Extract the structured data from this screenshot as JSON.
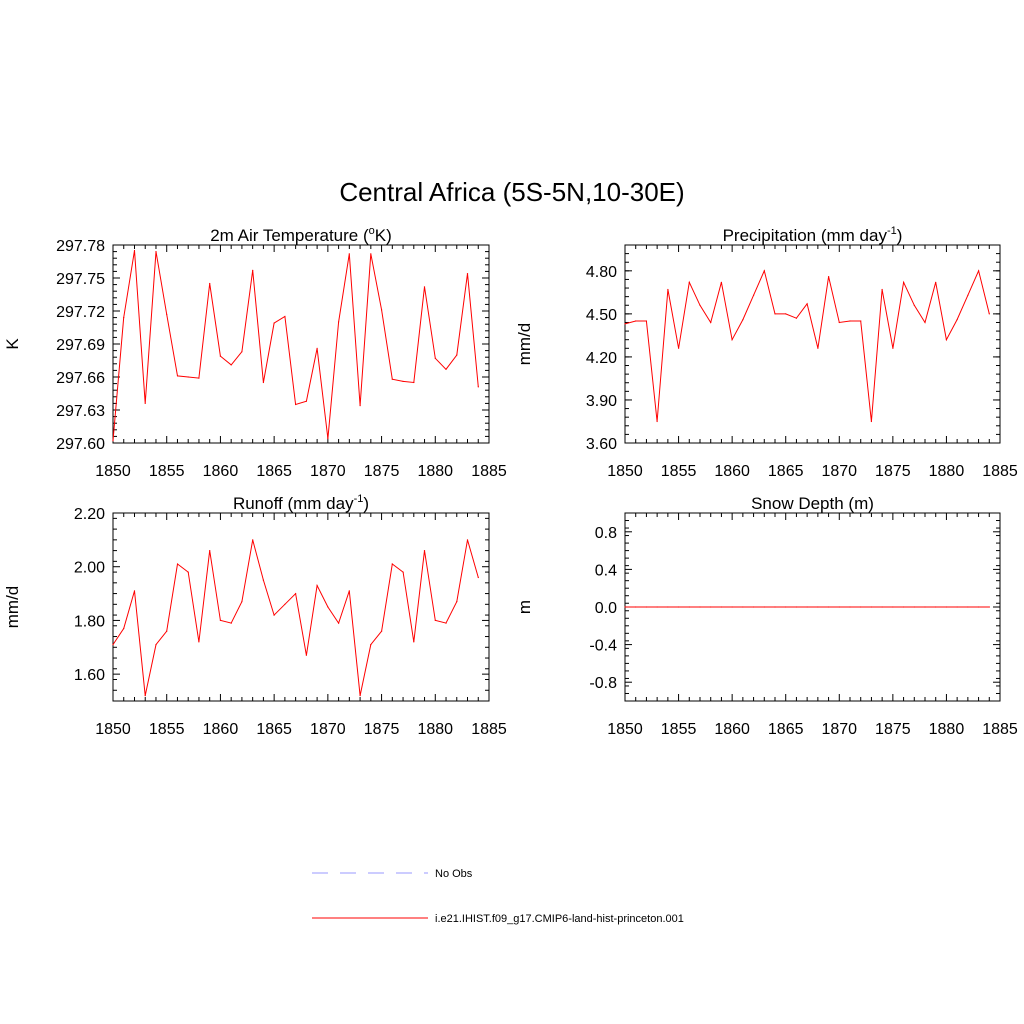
{
  "page_title": "Central Africa (5S-5N,10-30E)",
  "colors": {
    "model_line": "#ff0000",
    "obs_line": "#9999ff",
    "axis": "#000000"
  },
  "legend": {
    "obs_label": "No Obs",
    "model_label": "i.e21.IHIST.f09_g17.CMIP6-land-hist-princeton.001"
  },
  "chart_data": [
    {
      "type": "line",
      "title": "2m Air Temperature (°K)",
      "title_parts": {
        "main": "2m Air Temperature (",
        "sup": "o",
        "tail": "K)"
      },
      "xlabel": "",
      "ylabel": "K",
      "xlim": [
        1850,
        1885
      ],
      "ylim": [
        297.6,
        297.78
      ],
      "xticks": [
        1850,
        1855,
        1860,
        1865,
        1870,
        1875,
        1880,
        1885
      ],
      "yticks": [
        297.6,
        297.63,
        297.66,
        297.69,
        297.72,
        297.75,
        297.78
      ],
      "ytick_labels": [
        "297.60",
        "297.63",
        "297.66",
        "297.69",
        "297.72",
        "297.75",
        "297.78"
      ],
      "series": [
        {
          "x": [
            1850,
            1851,
            1852,
            1853,
            1854,
            1855,
            1856,
            1857,
            1858,
            1859,
            1860,
            1861,
            1862,
            1863,
            1864,
            1865,
            1866,
            1867,
            1868,
            1869,
            1870,
            1871,
            1872,
            1873,
            1874,
            1875,
            1876,
            1877,
            1878,
            1879,
            1880,
            1881,
            1882,
            1883,
            1884
          ],
          "values": [
            297.602,
            297.714,
            297.775,
            297.636,
            297.774,
            297.717,
            297.661,
            297.66,
            297.659,
            297.745,
            297.679,
            297.671,
            297.683,
            297.757,
            297.655,
            297.709,
            297.715,
            297.635,
            297.638,
            297.686,
            297.604,
            297.71,
            297.772,
            297.634,
            297.772,
            297.721,
            297.658,
            297.656,
            297.655,
            297.742,
            297.677,
            297.667,
            297.68,
            297.754,
            297.651
          ]
        }
      ]
    },
    {
      "type": "line",
      "title": "Precipitation (mm day-1)",
      "title_parts": {
        "main": "Precipitation (mm day",
        "sup": "-1",
        "tail": ")"
      },
      "xlabel": "",
      "ylabel": "mm/d",
      "xlim": [
        1850,
        1885
      ],
      "ylim": [
        3.6,
        4.98
      ],
      "xticks": [
        1850,
        1855,
        1860,
        1865,
        1870,
        1875,
        1880,
        1885
      ],
      "yticks": [
        3.6,
        3.9,
        4.2,
        4.5,
        4.8
      ],
      "ytick_labels": [
        "3.60",
        "3.90",
        "4.20",
        "4.50",
        "4.80"
      ],
      "series": [
        {
          "x": [
            1850,
            1851,
            1852,
            1853,
            1854,
            1855,
            1856,
            1857,
            1858,
            1859,
            1860,
            1861,
            1862,
            1863,
            1864,
            1865,
            1866,
            1867,
            1868,
            1869,
            1870,
            1871,
            1872,
            1873,
            1874,
            1875,
            1876,
            1877,
            1878,
            1879,
            1880,
            1881,
            1882,
            1883,
            1884
          ],
          "values": [
            4.43,
            4.45,
            4.45,
            3.75,
            4.67,
            4.26,
            4.72,
            4.56,
            4.44,
            4.72,
            4.32,
            4.46,
            4.63,
            4.8,
            4.5,
            4.5,
            4.47,
            4.57,
            4.26,
            4.76,
            4.44,
            4.45,
            4.45,
            3.75,
            4.67,
            4.26,
            4.72,
            4.56,
            4.44,
            4.72,
            4.32,
            4.46,
            4.63,
            4.8,
            4.5
          ]
        }
      ]
    },
    {
      "type": "line",
      "title": "Runoff (mm day-1)",
      "title_parts": {
        "main": "Runoff (mm day",
        "sup": "-1",
        "tail": ")"
      },
      "xlabel": "",
      "ylabel": "mm/d",
      "xlim": [
        1850,
        1885
      ],
      "ylim": [
        1.5,
        2.2
      ],
      "xticks": [
        1850,
        1855,
        1860,
        1865,
        1870,
        1875,
        1880,
        1885
      ],
      "yticks": [
        1.6,
        1.8,
        2.0,
        2.2
      ],
      "ytick_labels": [
        "1.60",
        "1.80",
        "2.00",
        "2.20"
      ],
      "series": [
        {
          "x": [
            1850,
            1851,
            1852,
            1853,
            1854,
            1855,
            1856,
            1857,
            1858,
            1859,
            1860,
            1861,
            1862,
            1863,
            1864,
            1865,
            1866,
            1867,
            1868,
            1869,
            1870,
            1871,
            1872,
            1873,
            1874,
            1875,
            1876,
            1877,
            1878,
            1879,
            1880,
            1881,
            1882,
            1883,
            1884
          ],
          "values": [
            1.71,
            1.77,
            1.91,
            1.52,
            1.71,
            1.76,
            2.01,
            1.98,
            1.72,
            2.06,
            1.8,
            1.79,
            1.87,
            2.1,
            1.95,
            1.82,
            1.86,
            1.9,
            1.67,
            1.93,
            1.85,
            1.79,
            1.91,
            1.52,
            1.71,
            1.76,
            2.01,
            1.98,
            1.72,
            2.06,
            1.8,
            1.79,
            1.87,
            2.1,
            1.96
          ]
        }
      ]
    },
    {
      "type": "line",
      "title": "Snow Depth (m)",
      "title_parts": {
        "main": "Snow Depth (m)",
        "sup": "",
        "tail": ""
      },
      "xlabel": "",
      "ylabel": "m",
      "xlim": [
        1850,
        1885
      ],
      "ylim": [
        -1.0,
        1.0
      ],
      "xticks": [
        1850,
        1855,
        1860,
        1865,
        1870,
        1875,
        1880,
        1885
      ],
      "yticks": [
        -0.8,
        -0.4,
        0.0,
        0.4,
        0.8
      ],
      "ytick_labels": [
        "-0.8",
        "-0.4",
        "0.0",
        "0.4",
        "0.8"
      ],
      "series": [
        {
          "x": [
            1850,
            1851,
            1852,
            1853,
            1854,
            1855,
            1856,
            1857,
            1858,
            1859,
            1860,
            1861,
            1862,
            1863,
            1864,
            1865,
            1866,
            1867,
            1868,
            1869,
            1870,
            1871,
            1872,
            1873,
            1874,
            1875,
            1876,
            1877,
            1878,
            1879,
            1880,
            1881,
            1882,
            1883,
            1884
          ],
          "values": [
            0,
            0,
            0,
            0,
            0,
            0,
            0,
            0,
            0,
            0,
            0,
            0,
            0,
            0,
            0,
            0,
            0,
            0,
            0,
            0,
            0,
            0,
            0,
            0,
            0,
            0,
            0,
            0,
            0,
            0,
            0,
            0,
            0,
            0,
            0
          ]
        }
      ]
    }
  ]
}
